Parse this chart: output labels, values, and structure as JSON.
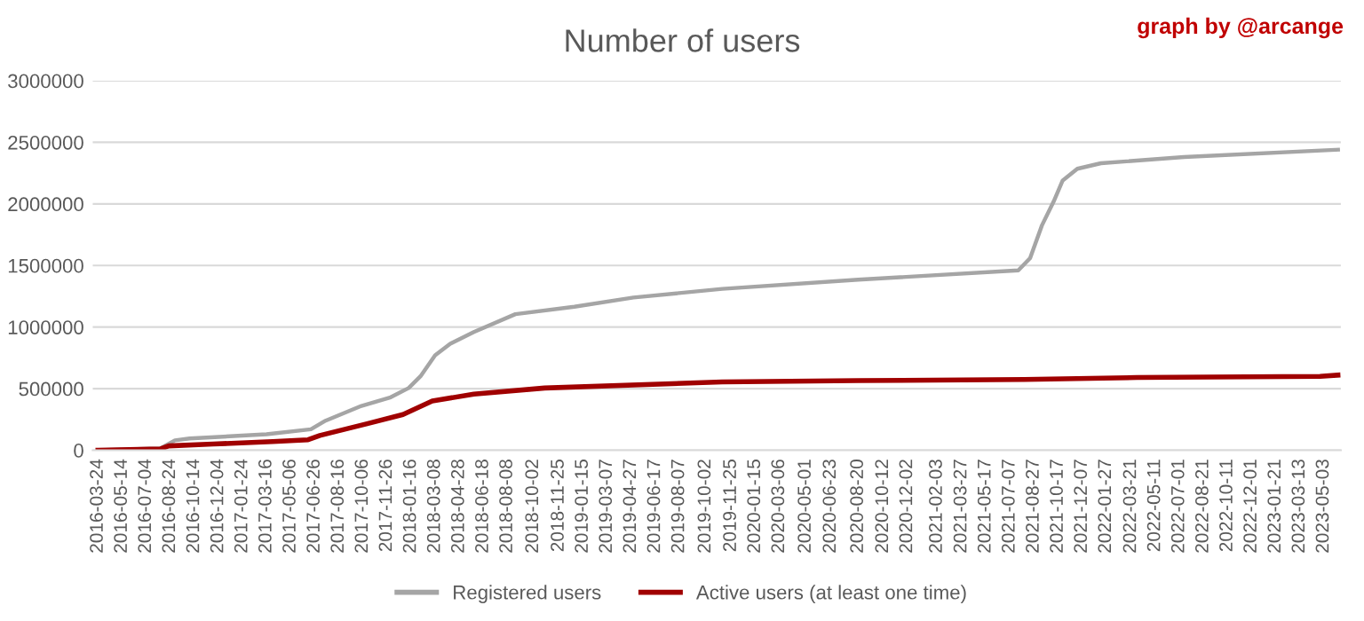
{
  "chart_data": {
    "type": "line",
    "title": "Number of users",
    "annotations": [
      "graph by @arcange"
    ],
    "xlim": [
      "2016-03-13",
      "2023-06-08"
    ],
    "xticks": [
      "2016-03-24",
      "2016-05-14",
      "2016-07-04",
      "2016-08-24",
      "2016-10-14",
      "2016-12-04",
      "2017-01-24",
      "2017-03-16",
      "2017-05-06",
      "2017-06-26",
      "2017-08-16",
      "2017-10-06",
      "2017-11-26",
      "2018-01-16",
      "2018-03-08",
      "2018-04-28",
      "2018-06-18",
      "2018-08-08",
      "2018-10-02",
      "2018-11-25",
      "2019-01-15",
      "2019-03-07",
      "2019-04-27",
      "2019-06-17",
      "2019-08-07",
      "2019-10-02",
      "2019-11-25",
      "2020-01-15",
      "2020-03-06",
      "2020-05-01",
      "2020-06-23",
      "2020-08-20",
      "2020-10-12",
      "2020-12-02",
      "2021-02-03",
      "2021-03-27",
      "2021-05-17",
      "2021-07-07",
      "2021-08-27",
      "2021-10-17",
      "2021-12-07",
      "2022-01-27",
      "2022-03-21",
      "2022-05-11",
      "2022-07-01",
      "2022-08-21",
      "2022-10-11",
      "2022-12-01",
      "2023-01-21",
      "2023-03-13",
      "2023-05-03"
    ],
    "ylim": [
      0,
      3000000
    ],
    "yticks": [
      0,
      500000,
      1000000,
      1500000,
      2000000,
      2500000,
      3000000
    ],
    "grid": "y",
    "legend": "bottom",
    "marker": "none",
    "line_style": "solid",
    "series": [
      {
        "name": "Registered users",
        "color": "#a5a5a5",
        "x": [
          "2016-03-24",
          "2016-08-03",
          "2016-09-03",
          "2016-10-04",
          "2017-03-16",
          "2017-06-18",
          "2017-07-19",
          "2017-10-03",
          "2017-12-04",
          "2018-01-11",
          "2018-02-05",
          "2018-03-08",
          "2018-04-09",
          "2018-05-29",
          "2018-08-25",
          "2018-12-28",
          "2019-05-02",
          "2019-11-06",
          "2020-08-20",
          "2021-07-25",
          "2021-08-19",
          "2021-09-13",
          "2021-10-08",
          "2021-10-27",
          "2021-11-27",
          "2022-01-16",
          "2022-07-11",
          "2023-06-02"
        ],
        "values": [
          0,
          15000,
          80000,
          95000,
          130000,
          170000,
          240000,
          360000,
          430000,
          505000,
          600000,
          770000,
          865000,
          960000,
          1105000,
          1165000,
          1240000,
          1310000,
          1385000,
          1460000,
          1560000,
          1825000,
          2020000,
          2190000,
          2285000,
          2330000,
          2380000,
          2440000
        ]
      },
      {
        "name": "Active users (at least one time)",
        "color": "#a00000",
        "x": [
          "2016-03-24",
          "2016-08-03",
          "2016-08-21",
          "2016-11-23",
          "2017-03-29",
          "2017-06-12",
          "2017-07-07",
          "2017-10-15",
          "2017-12-30",
          "2018-03-02",
          "2018-05-29",
          "2018-10-26",
          "2019-11-06",
          "2020-08-20",
          "2021-08-07",
          "2022-04-02",
          "2023-04-25",
          "2023-06-02"
        ],
        "values": [
          0,
          10000,
          35000,
          50000,
          70000,
          85000,
          120000,
          215000,
          290000,
          400000,
          455000,
          505000,
          555000,
          565000,
          575000,
          590000,
          600000,
          610000
        ]
      }
    ]
  }
}
